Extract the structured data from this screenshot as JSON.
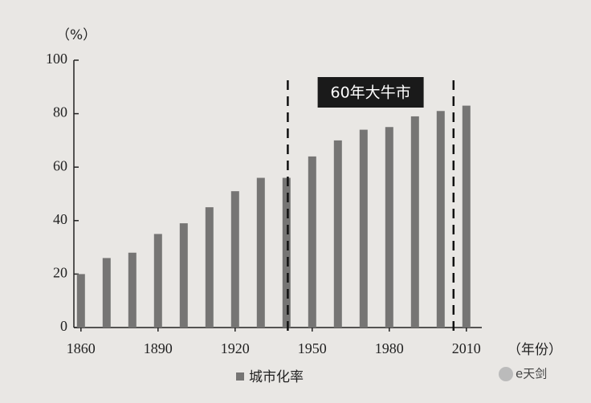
{
  "chart_data": {
    "type": "bar",
    "y_unit": "（%）",
    "x_unit": "（年份）",
    "x": [
      1860,
      1870,
      1880,
      1890,
      1900,
      1910,
      1920,
      1930,
      1940,
      1950,
      1960,
      1970,
      1980,
      1990,
      2000,
      2010
    ],
    "series": [
      {
        "name": "城市化率",
        "color": "#767574",
        "values": [
          20,
          26,
          28,
          35,
          39,
          45,
          51,
          56,
          56,
          64,
          70,
          74,
          75,
          79,
          81,
          83
        ]
      }
    ],
    "xlim": [
      1856,
      2016
    ],
    "xticks": [
      1860,
      1890,
      1920,
      1950,
      1980,
      2010
    ],
    "ylim": [
      0,
      100
    ],
    "yticks": [
      0,
      20,
      40,
      60,
      80,
      100
    ],
    "reference_lines": [
      1940.5,
      2005
    ],
    "annotation": "60年大牛市",
    "watermark": "e天剑"
  }
}
